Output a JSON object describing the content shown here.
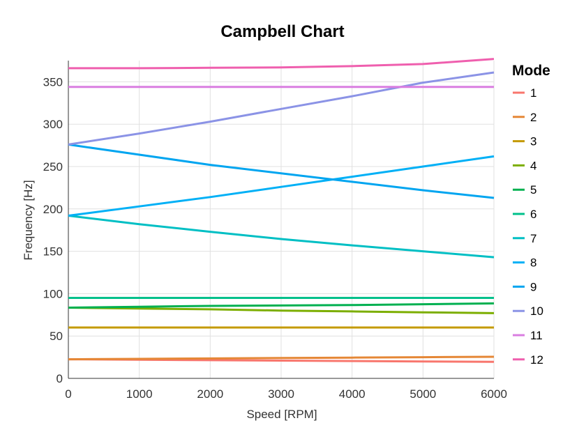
{
  "chart_data": {
    "type": "line",
    "title": "Campbell Chart",
    "xlabel": "Speed [RPM]",
    "ylabel": "Frequency [Hz]",
    "xlim": [
      0,
      6000
    ],
    "ylim": [
      0,
      375
    ],
    "xticks": [
      0,
      1000,
      2000,
      3000,
      4000,
      5000,
      6000
    ],
    "yticks": [
      0,
      50,
      100,
      150,
      200,
      250,
      300,
      350
    ],
    "grid": true,
    "legend": {
      "title": "Mode",
      "placement": "right"
    },
    "x": [
      0,
      1000,
      2000,
      3000,
      4000,
      5000,
      6000
    ],
    "series": [
      {
        "name": "1",
        "color": "#f8766d",
        "values": [
          22.5,
          22,
          21.5,
          21,
          20.5,
          20,
          19.5
        ]
      },
      {
        "name": "2",
        "color": "#e58736",
        "values": [
          22.5,
          23,
          23.5,
          24,
          24.5,
          25,
          25.5
        ]
      },
      {
        "name": "3",
        "color": "#c49a00",
        "values": [
          60,
          60,
          60,
          60,
          60,
          60,
          60
        ]
      },
      {
        "name": "4",
        "color": "#7cae00",
        "values": [
          83.5,
          82.5,
          81.5,
          80,
          79,
          78,
          77
        ]
      },
      {
        "name": "5",
        "color": "#00b050",
        "values": [
          83.5,
          84.5,
          85.5,
          86,
          86.5,
          87.5,
          88.5
        ]
      },
      {
        "name": "6",
        "color": "#00c08b",
        "values": [
          95,
          95,
          95,
          95,
          95,
          95,
          95
        ]
      },
      {
        "name": "7",
        "color": "#00bfc4",
        "values": [
          192,
          182,
          173,
          164.5,
          157,
          150,
          143
        ]
      },
      {
        "name": "8",
        "color": "#00b0f6",
        "values": [
          192,
          203,
          214,
          226,
          238,
          250,
          262
        ]
      },
      {
        "name": "9",
        "color": "#00a5f0",
        "values": [
          276,
          264,
          252,
          242,
          232,
          222,
          213
        ]
      },
      {
        "name": "10",
        "color": "#8b93e6",
        "values": [
          276,
          289,
          303,
          318,
          333,
          349,
          361
        ]
      },
      {
        "name": "11",
        "color": "#d97ee0",
        "values": [
          344,
          344,
          344,
          344,
          344,
          344,
          344
        ]
      },
      {
        "name": "12",
        "color": "#ef5fae",
        "values": [
          366,
          366,
          366.5,
          367,
          368.5,
          371,
          377
        ]
      }
    ]
  }
}
